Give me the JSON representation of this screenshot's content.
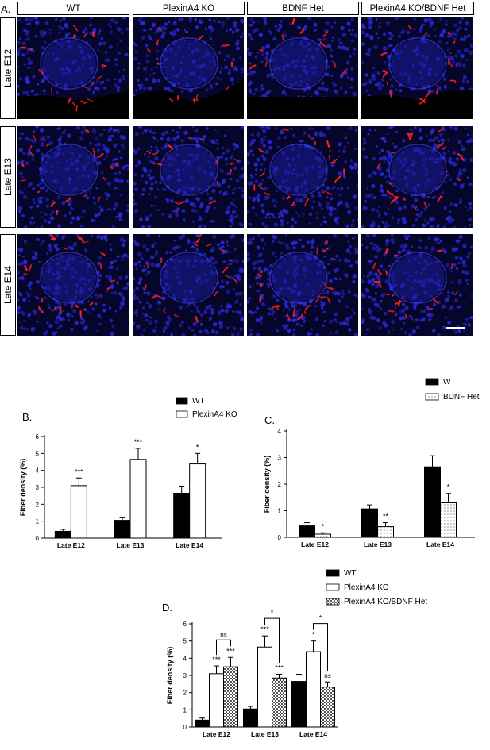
{
  "figure_a": {
    "panel_letter": "A.",
    "columns": [
      "WT",
      "PlexinA4 KO",
      "BDNF Het",
      "PlexinA4 KO/BDNF Het"
    ],
    "rows": [
      "Late E12",
      "Late E13",
      "Late E14"
    ],
    "colors": {
      "nuclei": "#2a2ae0",
      "fibers": "#ff2020",
      "background": "#06062a"
    }
  },
  "chart_data": [
    {
      "panel_letter": "B.",
      "type": "bar",
      "categories": [
        "Late E12",
        "Late E13",
        "Late E14"
      ],
      "ylabel": "Fiber density (%)",
      "ylim": [
        0,
        6
      ],
      "yticks": [
        0,
        1,
        2,
        3,
        4,
        5,
        6
      ],
      "legend_position": "top",
      "series": [
        {
          "name": "WT",
          "values": [
            0.4,
            1.05,
            2.65
          ],
          "errors": [
            0.12,
            0.15,
            0.42
          ],
          "fill": "#000000"
        },
        {
          "name": "PlexinA4 KO",
          "values": [
            3.1,
            4.65,
            4.38
          ],
          "errors": [
            0.45,
            0.65,
            0.62
          ],
          "fill": "#ffffff"
        }
      ],
      "significance": [
        {
          "category": 0,
          "series": 1,
          "label": "***"
        },
        {
          "category": 1,
          "series": 1,
          "label": "***"
        },
        {
          "category": 2,
          "series": 1,
          "label": "*"
        }
      ]
    },
    {
      "panel_letter": "C.",
      "type": "bar",
      "categories": [
        "Late E12",
        "Late E13",
        "Late E14"
      ],
      "ylabel": "Fiber density (%)",
      "ylim": [
        0,
        4
      ],
      "yticks": [
        0,
        1,
        2,
        3,
        4
      ],
      "legend_position": "top",
      "series": [
        {
          "name": "WT",
          "values": [
            0.43,
            1.07,
            2.65
          ],
          "errors": [
            0.12,
            0.15,
            0.42
          ],
          "fill": "#000000"
        },
        {
          "name": "BDNF Het",
          "values": [
            0.12,
            0.4,
            1.3
          ],
          "errors": [
            0.05,
            0.15,
            0.35
          ],
          "fill": "dots"
        }
      ],
      "significance": [
        {
          "category": 0,
          "series": 1,
          "label": "*"
        },
        {
          "category": 1,
          "series": 1,
          "label": "**"
        },
        {
          "category": 2,
          "series": 1,
          "label": "*"
        }
      ]
    },
    {
      "panel_letter": "D.",
      "type": "bar",
      "categories": [
        "Late E12",
        "Late E13",
        "Late E14"
      ],
      "ylabel": "Fiber density (%)",
      "ylim": [
        0,
        6
      ],
      "yticks": [
        0,
        1,
        2,
        3,
        4,
        5,
        6
      ],
      "legend_position": "top",
      "series": [
        {
          "name": "WT",
          "values": [
            0.4,
            1.05,
            2.65
          ],
          "errors": [
            0.12,
            0.15,
            0.42
          ],
          "fill": "#000000"
        },
        {
          "name": "PlexinA4 KO",
          "values": [
            3.1,
            4.65,
            4.38
          ],
          "errors": [
            0.45,
            0.65,
            0.62
          ],
          "fill": "#ffffff"
        },
        {
          "name": "PlexinA4 KO/BDNF Het",
          "values": [
            3.5,
            2.85,
            2.32
          ],
          "errors": [
            0.55,
            0.22,
            0.3
          ],
          "fill": "checker"
        }
      ],
      "significance": [
        {
          "category": 0,
          "series": 1,
          "label": "***"
        },
        {
          "category": 0,
          "series": 2,
          "label": "***"
        },
        {
          "category": 1,
          "series": 1,
          "label": "***"
        },
        {
          "category": 1,
          "series": 2,
          "label": "***"
        },
        {
          "category": 2,
          "series": 1,
          "label": "*"
        },
        {
          "category": 2,
          "series": 2,
          "label": "ns"
        }
      ],
      "brackets": [
        {
          "category": 0,
          "from": 1,
          "to": 2,
          "label": "ns"
        },
        {
          "category": 1,
          "from": 1,
          "to": 2,
          "label": "*"
        },
        {
          "category": 2,
          "from": 1,
          "to": 2,
          "label": "*"
        }
      ]
    }
  ]
}
